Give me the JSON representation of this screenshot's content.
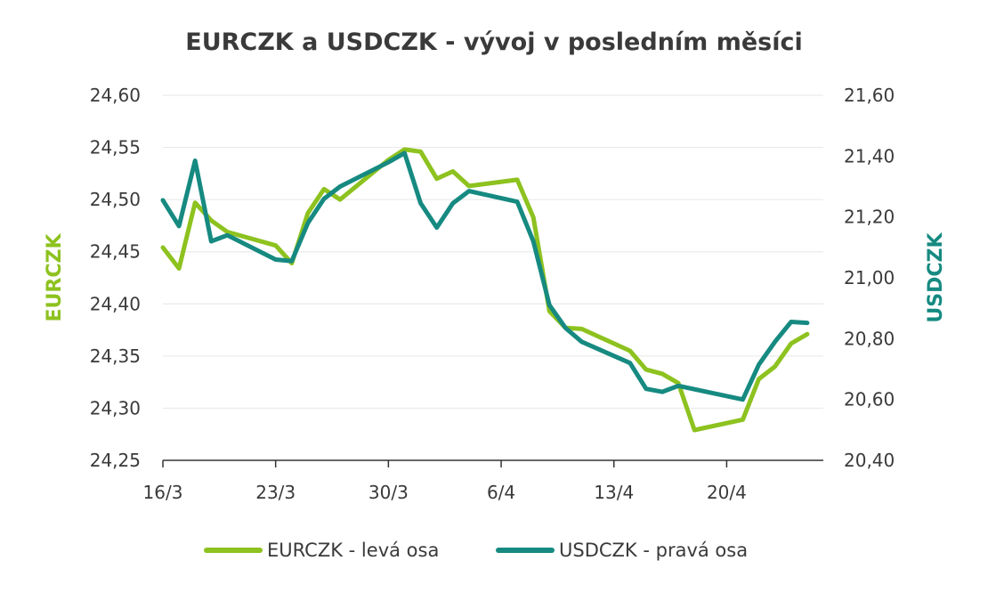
{
  "chart_data": {
    "type": "line",
    "title": "EURCZK a USDCZK - vývoj v posledním měsíci",
    "ylabel_left": "EURCZK",
    "ylabel_right": "USDCZK",
    "ylim_left": [
      24.25,
      24.6
    ],
    "ylim_right": [
      20.4,
      21.6
    ],
    "yticks_left": [
      "24,60",
      "24,55",
      "24,50",
      "24,45",
      "24,40",
      "24,35",
      "24,30",
      "24,25"
    ],
    "yticks_right": [
      "21,60",
      "21,40",
      "21,20",
      "21,00",
      "20,80",
      "20,60",
      "20,40"
    ],
    "xticks": [
      "16/3",
      "23/3",
      "30/3",
      "6/4",
      "13/4",
      "20/4"
    ],
    "grid": true,
    "legend_position": "bottom",
    "series": [
      {
        "name": "EURCZK - levá osa",
        "axis": "left",
        "color": "#8dc21f",
        "points": [
          [
            "2020-03-16",
            24.454
          ],
          [
            "2020-03-17",
            24.434
          ],
          [
            "2020-03-18",
            24.497
          ],
          [
            "2020-03-19",
            24.48
          ],
          [
            "2020-03-20",
            24.469
          ],
          [
            "2020-03-23",
            24.456
          ],
          [
            "2020-03-24",
            24.439
          ],
          [
            "2020-03-25",
            24.487
          ],
          [
            "2020-03-26",
            24.51
          ],
          [
            "2020-03-27",
            24.5
          ],
          [
            "2020-03-30",
            24.538
          ],
          [
            "2020-03-31",
            24.548
          ],
          [
            "2020-04-01",
            24.546
          ],
          [
            "2020-04-02",
            24.52
          ],
          [
            "2020-04-03",
            24.527
          ],
          [
            "2020-04-04",
            24.513
          ],
          [
            "2020-04-07",
            24.519
          ],
          [
            "2020-04-08",
            24.483
          ],
          [
            "2020-04-09",
            24.393
          ],
          [
            "2020-04-10",
            24.377
          ],
          [
            "2020-04-11",
            24.376
          ],
          [
            "2020-04-14",
            24.355
          ],
          [
            "2020-04-15",
            24.337
          ],
          [
            "2020-04-16",
            24.333
          ],
          [
            "2020-04-17",
            24.324
          ],
          [
            "2020-04-18",
            24.279
          ],
          [
            "2020-04-21",
            24.289
          ],
          [
            "2020-04-22",
            24.328
          ],
          [
            "2020-04-23",
            24.34
          ],
          [
            "2020-04-24",
            24.362
          ],
          [
            "2020-04-25",
            24.371
          ]
        ]
      },
      {
        "name": "USDCZK - pravá osa",
        "axis": "right",
        "color": "#168a81",
        "points": [
          [
            "2020-03-16",
            21.255
          ],
          [
            "2020-03-17",
            21.17
          ],
          [
            "2020-03-18",
            21.385
          ],
          [
            "2020-03-19",
            21.12
          ],
          [
            "2020-03-20",
            21.14
          ],
          [
            "2020-03-23",
            21.06
          ],
          [
            "2020-03-24",
            21.055
          ],
          [
            "2020-03-25",
            21.18
          ],
          [
            "2020-03-26",
            21.26
          ],
          [
            "2020-03-27",
            21.3
          ],
          [
            "2020-03-30",
            21.38
          ],
          [
            "2020-03-31",
            21.41
          ],
          [
            "2020-04-01",
            21.245
          ],
          [
            "2020-04-02",
            21.165
          ],
          [
            "2020-04-03",
            21.245
          ],
          [
            "2020-04-04",
            21.285
          ],
          [
            "2020-04-07",
            21.25
          ],
          [
            "2020-04-08",
            21.12
          ],
          [
            "2020-04-09",
            20.91
          ],
          [
            "2020-04-10",
            20.835
          ],
          [
            "2020-04-11",
            20.79
          ],
          [
            "2020-04-14",
            20.72
          ],
          [
            "2020-04-15",
            20.635
          ],
          [
            "2020-04-16",
            20.625
          ],
          [
            "2020-04-17",
            20.645
          ],
          [
            "2020-04-21",
            20.6
          ],
          [
            "2020-04-22",
            20.715
          ],
          [
            "2020-04-23",
            20.79
          ],
          [
            "2020-04-24",
            20.855
          ],
          [
            "2020-04-25",
            20.852
          ]
        ]
      }
    ]
  }
}
